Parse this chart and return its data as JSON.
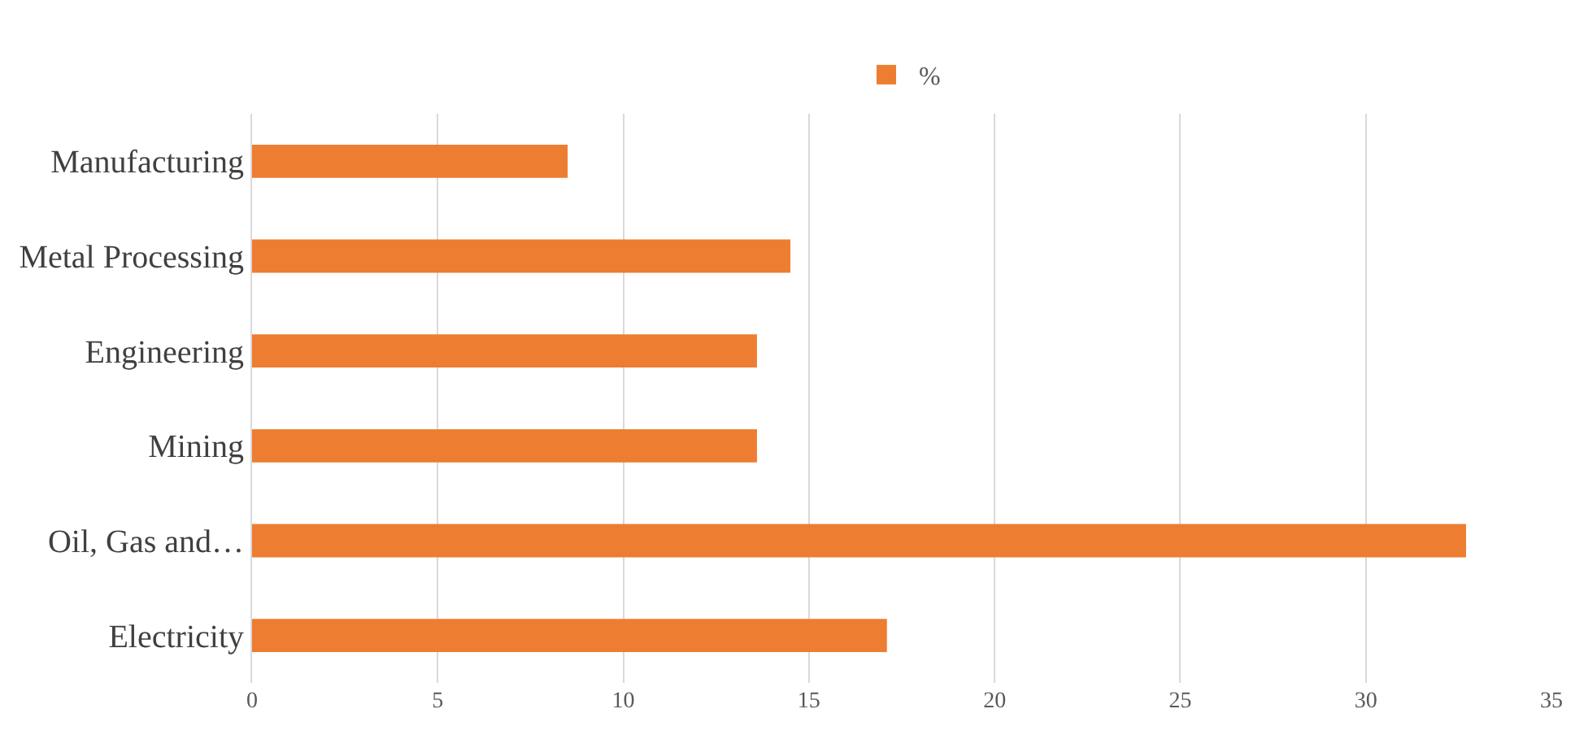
{
  "chart_data": {
    "type": "bar",
    "orientation": "horizontal",
    "categories": [
      "Manufacturing",
      "Metal Processing",
      "Engineering",
      "Mining",
      "Oil, Gas and…",
      "Electricity"
    ],
    "series": [
      {
        "name": "%",
        "color": "#ed7d31",
        "values": [
          8.5,
          14.5,
          13.6,
          13.6,
          32.7,
          17.1
        ]
      }
    ],
    "xlim": [
      0,
      35
    ],
    "xticks": [
      0,
      5,
      10,
      15,
      20,
      25,
      30,
      35
    ],
    "grid": "x",
    "legend": "top"
  }
}
